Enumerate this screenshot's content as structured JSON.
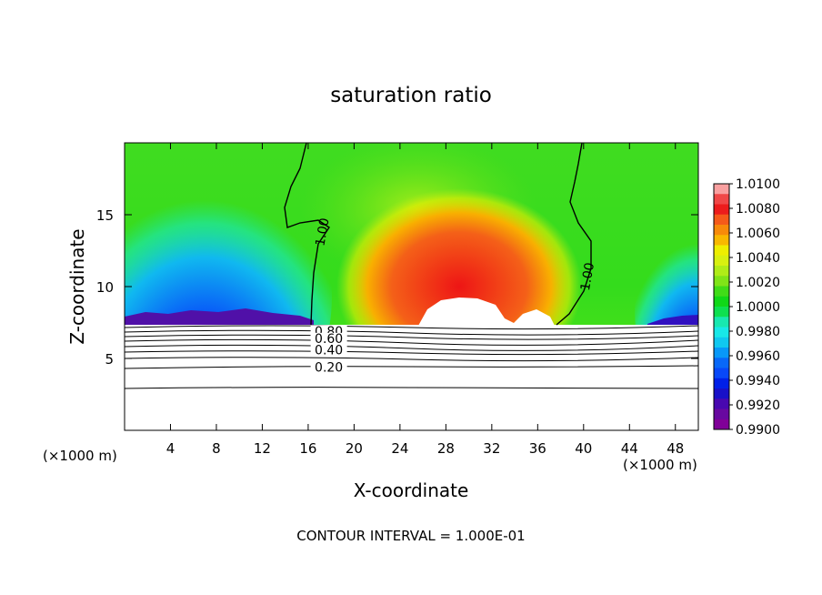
{
  "chart_data": {
    "type": "heatmap",
    "title": "saturation ratio",
    "xlabel": "X-coordinate",
    "ylabel": "Z-coordinate",
    "x_unit_left": "(×1000 m)",
    "x_unit_right": "(×1000 m)",
    "xlim": [
      0,
      50
    ],
    "ylim": [
      0,
      20
    ],
    "x_ticks": [
      4,
      8,
      12,
      16,
      20,
      24,
      28,
      32,
      36,
      40,
      44,
      48
    ],
    "y_ticks": [
      5,
      10,
      15
    ],
    "footer": "CONTOUR INTERVAL = 1.000E-01",
    "colorbar": {
      "min": 0.99,
      "max": 1.01,
      "labels": [
        "1.0100",
        "1.0080",
        "1.0060",
        "1.0040",
        "1.0020",
        "1.0000",
        "0.9980",
        "0.9960",
        "0.9940",
        "0.9920",
        "0.9900"
      ],
      "colors": [
        "#f9a0a0",
        "#f04848",
        "#ec1c1c",
        "#f55a1a",
        "#f78a0a",
        "#f8b800",
        "#eeee00",
        "#d8f010",
        "#b0ec18",
        "#80e418",
        "#40dc18",
        "#10d818",
        "#0ee050",
        "#18e8b0",
        "#18e8e8",
        "#10c8f0",
        "#0898f8",
        "#0868f8",
        "#0848f8",
        "#0020e8",
        "#1810c8",
        "#4808b0",
        "#6808a0",
        "#800098"
      ]
    },
    "contour_labels": [
      {
        "text": "1.00",
        "x": 17.2,
        "y": 13.8
      },
      {
        "text": "1.00",
        "x": 40.3,
        "y": 10.7
      },
      {
        "text": "0.80",
        "x": 17.8,
        "y": 6.9
      },
      {
        "text": "0.60",
        "x": 17.8,
        "y": 6.4
      },
      {
        "text": "0.40",
        "x": 17.8,
        "y": 5.6
      },
      {
        "text": "0.20",
        "x": 17.8,
        "y": 4.4
      }
    ]
  }
}
